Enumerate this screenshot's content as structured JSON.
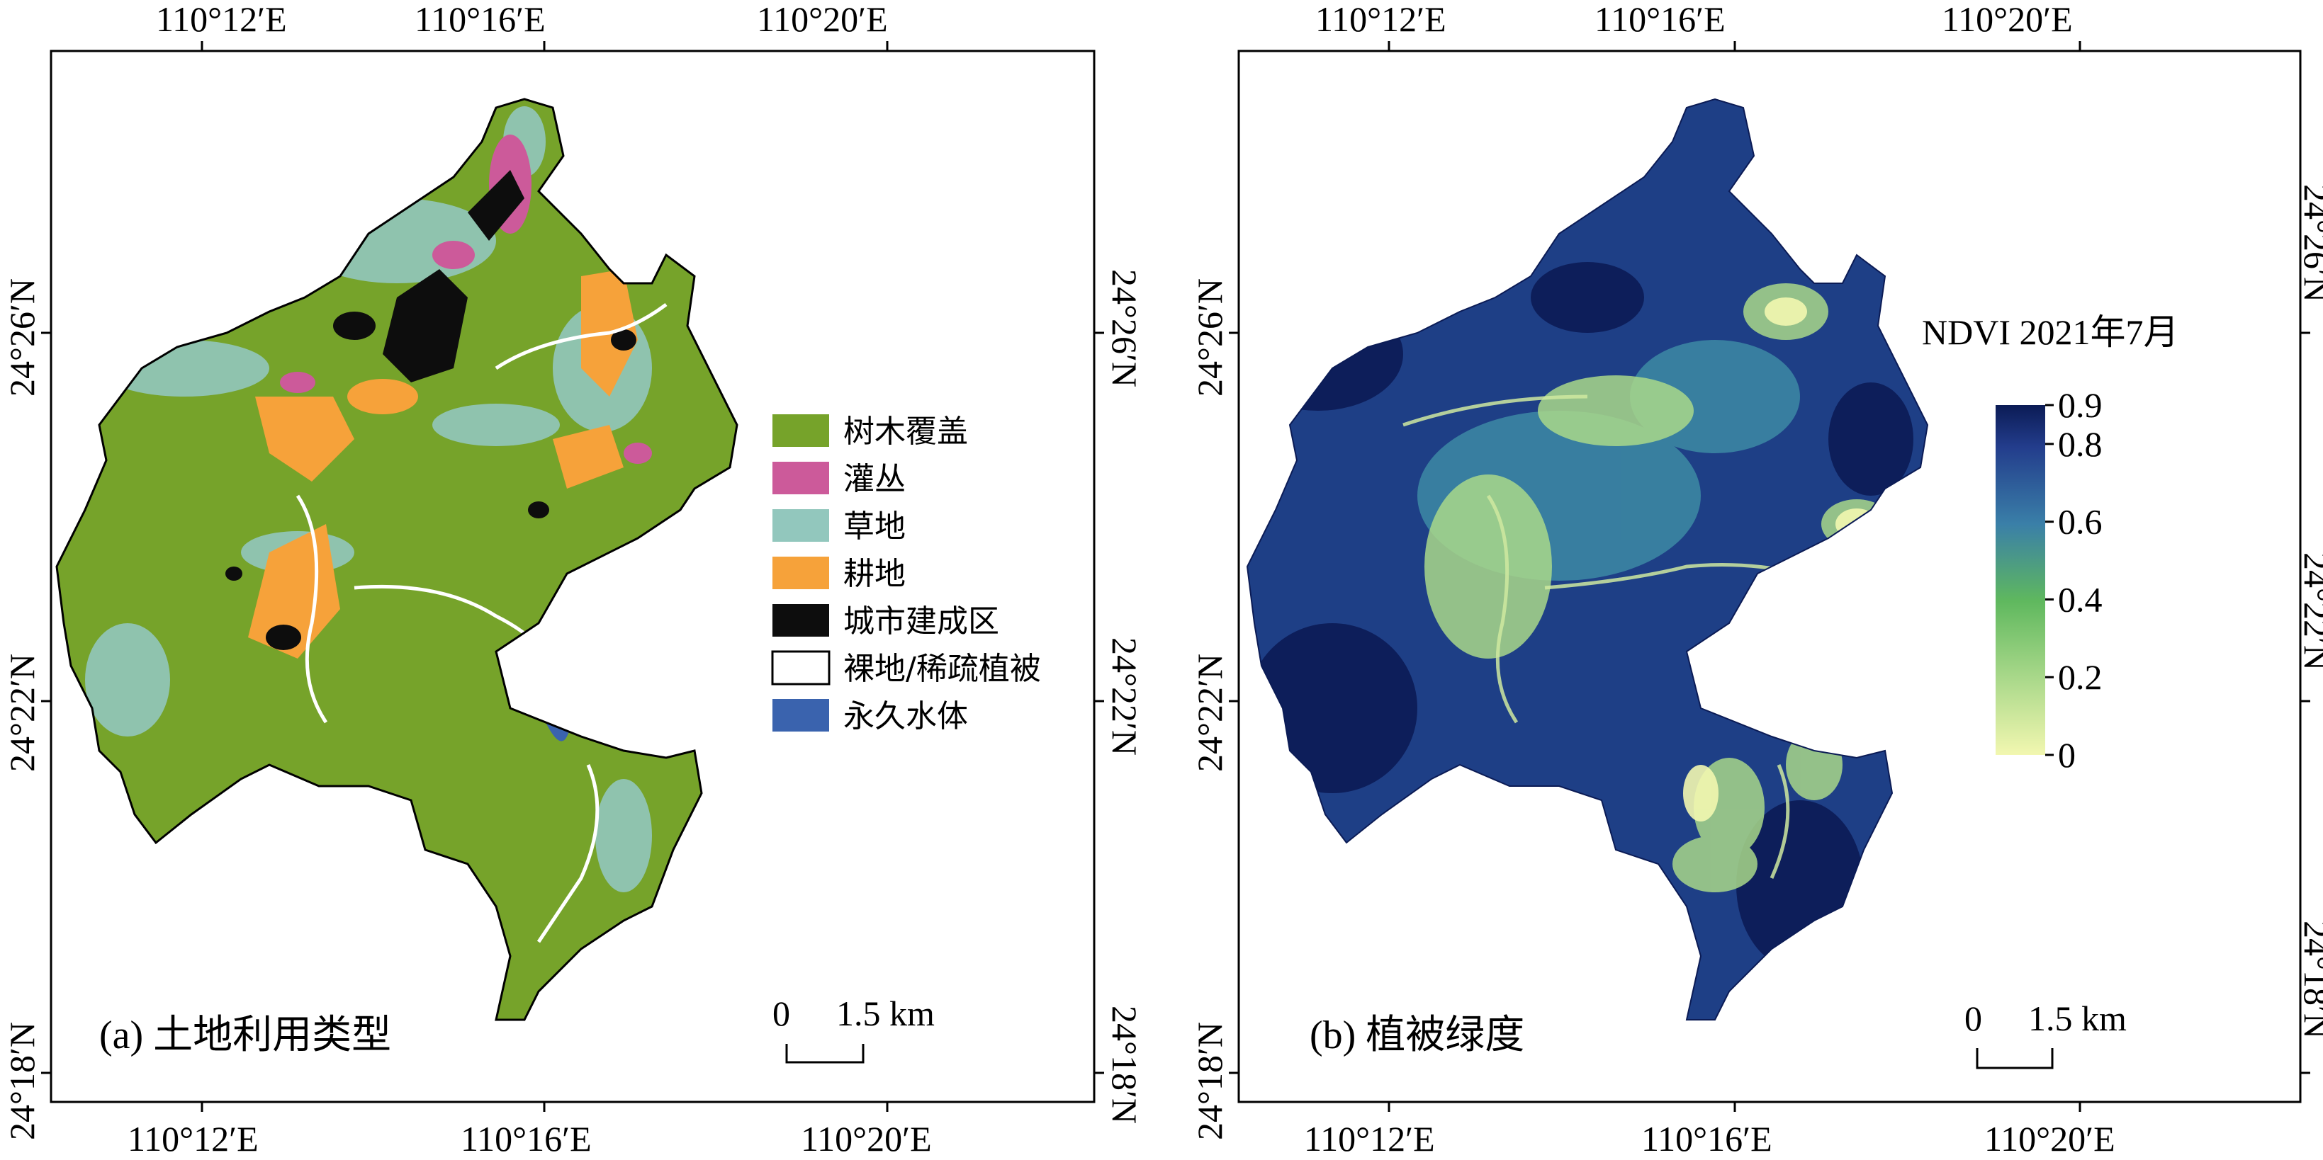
{
  "panels": {
    "a": {
      "label": "(a) 土地利用类型",
      "scale_zero": "0",
      "scale_value": "1.5 km",
      "top_ticks": [
        "110°12′E",
        "110°16′E",
        "110°20′E"
      ],
      "bottom_ticks": [
        "110°12′E",
        "110°16′E",
        "110°20′E"
      ],
      "left_ticks": [
        "24°26′N",
        "24°22′N",
        "24°18′N"
      ],
      "right_ticks": [
        "24°26′N",
        "24°22′N",
        "24°18′N"
      ],
      "legend": [
        {
          "label": "树木覆盖",
          "color": "#76a32a"
        },
        {
          "label": "灌丛",
          "color": "#cc5a9a"
        },
        {
          "label": "草地",
          "color": "#92c7bd"
        },
        {
          "label": "耕地",
          "color": "#f6a23a"
        },
        {
          "label": "城市建成区",
          "color": "#0d0d0d"
        },
        {
          "label": "裸地/稀疏植被",
          "color": "#ffffff"
        },
        {
          "label": "永久水体",
          "color": "#3a63ae"
        }
      ]
    },
    "b": {
      "label": "(b) 植被绿度",
      "scale_zero": "0",
      "scale_value": "1.5 km",
      "colorbar_title": "NDVI 2021年7月",
      "colorbar_ticks": [
        "0.9",
        "0.8",
        "0.6",
        "0.4",
        "0.2",
        "0"
      ],
      "colorbar_tick_values": [
        0.9,
        0.8,
        0.6,
        0.4,
        0.2,
        0
      ],
      "colorbar_range": [
        0,
        0.9
      ],
      "colorbar_colors": [
        "#f2f7b0",
        "#a9d88a",
        "#5fb85e",
        "#3a7fa8",
        "#233d8c",
        "#0b1b55"
      ],
      "top_ticks": [
        "110°12′E",
        "110°16′E",
        "110°20′E"
      ],
      "bottom_ticks": [
        "110°12′E",
        "110°16′E",
        "110°20′E"
      ],
      "left_ticks": [
        "24°26′N",
        "24°22′N",
        "24°18′N"
      ],
      "right_ticks": [
        "24°26′N",
        "24°22′N",
        "24°18′N"
      ]
    }
  }
}
